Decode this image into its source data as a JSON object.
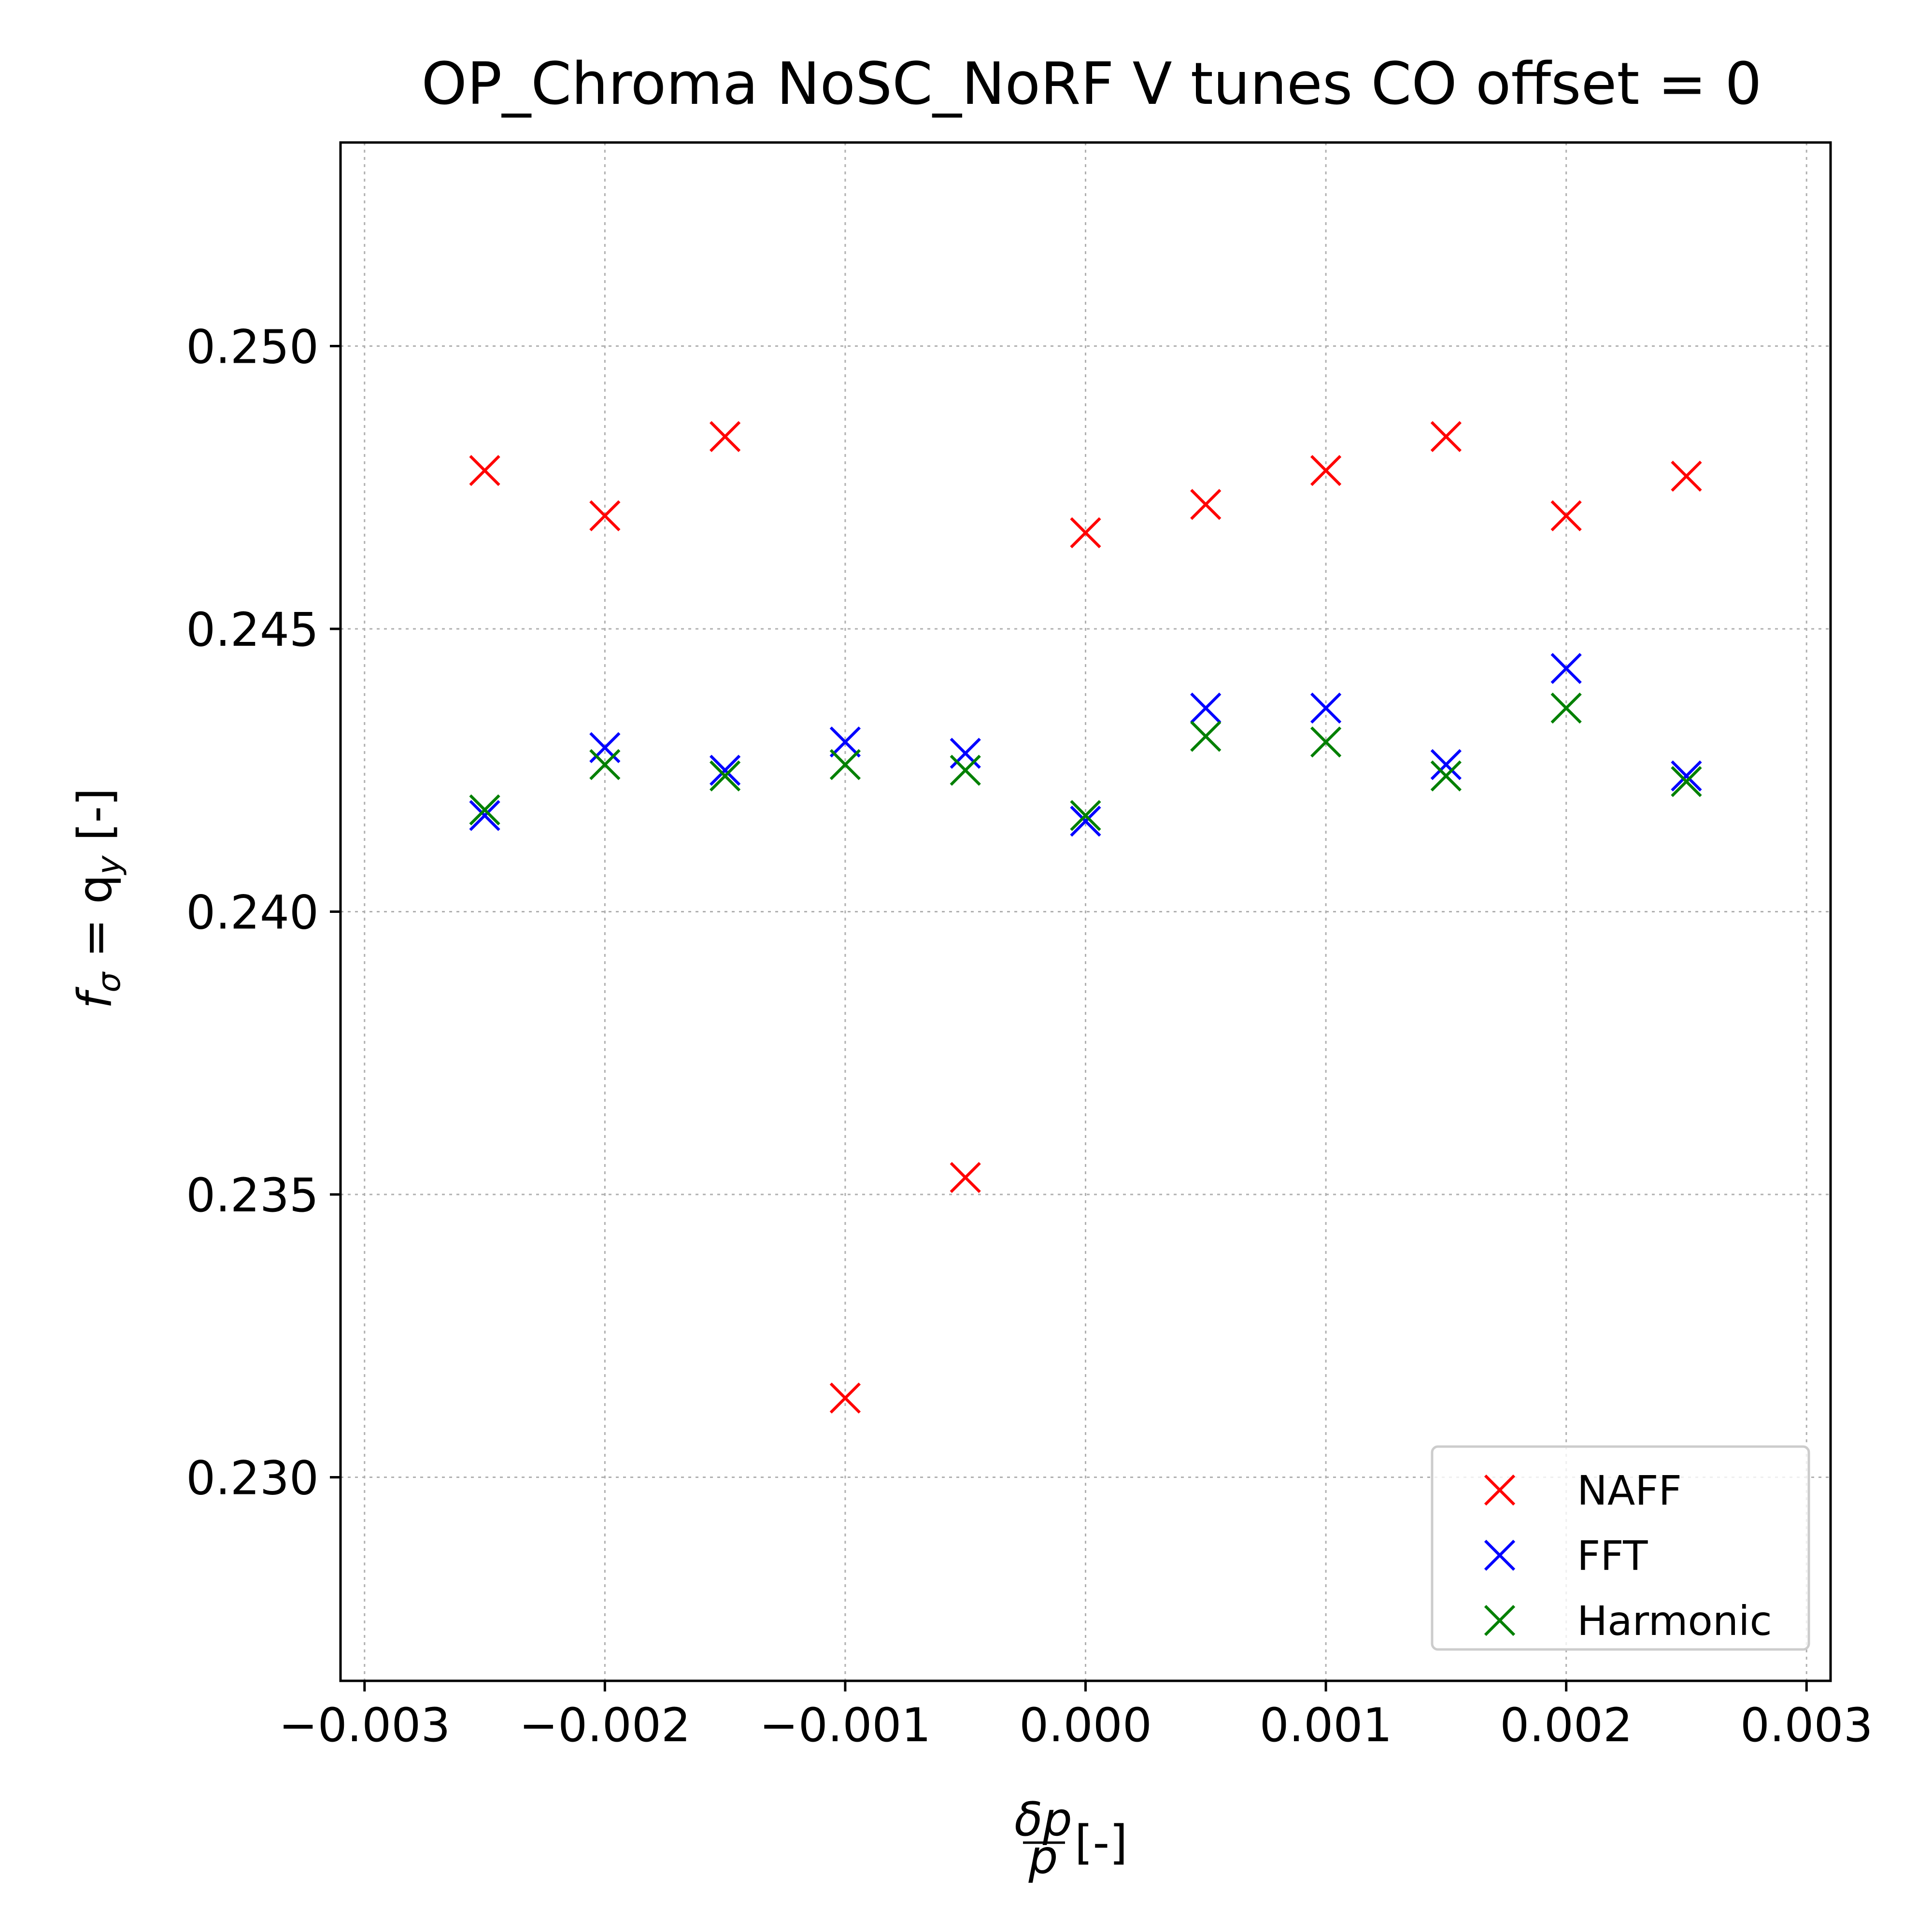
{
  "chart_data": {
    "type": "scatter",
    "title": "OP_Chroma NoSC_NoRF V tunes CO offset = 0",
    "xlabel": {
      "numerator": "δp",
      "denominator": "p",
      "suffix": "[-]"
    },
    "ylabel": {
      "prefix": "f",
      "sub1": "σ",
      "mid": " = q",
      "sub2": "y",
      "suffix": " [-]"
    },
    "xlim": [
      -0.0031,
      0.0031
    ],
    "ylim": [
      0.2264,
      0.2536
    ],
    "xticks": [
      -0.003,
      -0.002,
      -0.001,
      0.0,
      0.001,
      0.002,
      0.003
    ],
    "xtick_labels": [
      "−0.003",
      "−0.002",
      "−0.001",
      "0.000",
      "0.001",
      "0.002",
      "0.003"
    ],
    "yticks": [
      0.23,
      0.235,
      0.24,
      0.245,
      0.25
    ],
    "ytick_labels": [
      "0.230",
      "0.235",
      "0.240",
      "0.245",
      "0.250"
    ],
    "grid": true,
    "legend_position": "lower-right",
    "x": [
      -0.0025,
      -0.002,
      -0.0015,
      -0.001,
      -0.0005,
      0.0,
      0.0005,
      0.001,
      0.0015,
      0.002,
      0.0025
    ],
    "series": [
      {
        "name": "NAFF",
        "color": "#ff0000",
        "marker": "x",
        "values": [
          0.2478,
          0.247,
          0.2484,
          0.2314,
          0.2353,
          0.2467,
          0.2472,
          0.2478,
          0.2484,
          0.247,
          0.2477
        ]
      },
      {
        "name": "FFT",
        "color": "#0000ff",
        "marker": "x",
        "values": [
          0.2417,
          0.2429,
          0.2425,
          0.243,
          0.2428,
          0.2416,
          0.2436,
          0.2436,
          0.2426,
          0.2443,
          0.2424
        ]
      },
      {
        "name": "Harmonic",
        "color": "#008000",
        "marker": "x",
        "values": [
          0.2418,
          0.2426,
          0.2424,
          0.2426,
          0.2425,
          0.2417,
          0.2431,
          0.243,
          0.2424,
          0.2436,
          0.2423
        ]
      }
    ]
  }
}
